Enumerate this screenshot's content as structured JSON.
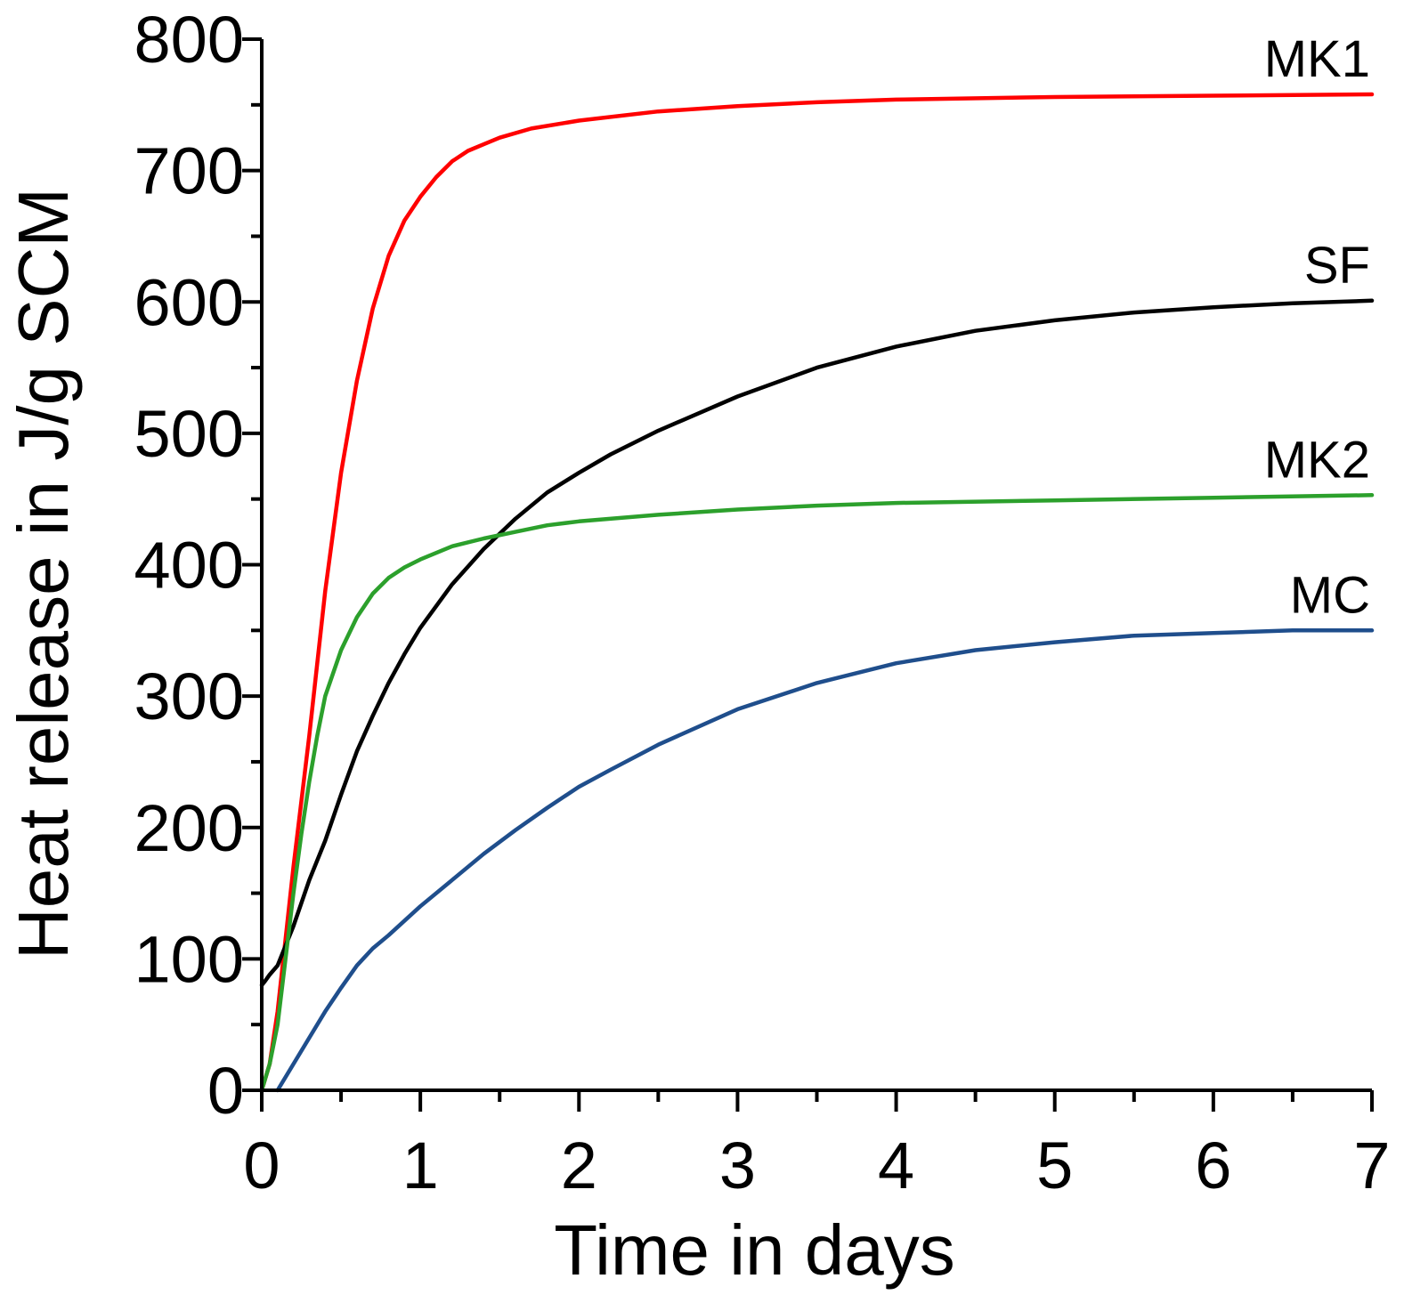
{
  "chart_data": {
    "type": "line",
    "title": "",
    "xlabel": "Time in days",
    "ylabel": "Heat release in J/g SCM",
    "xlim": [
      0,
      7
    ],
    "ylim": [
      0,
      800
    ],
    "xticks": [
      0,
      1,
      2,
      3,
      4,
      5,
      6,
      7
    ],
    "xtick_labels": [
      "0",
      "1",
      "2",
      "3",
      "4",
      "5",
      "6",
      "7"
    ],
    "xminor": [
      0.5,
      1.5,
      2.5,
      3.5,
      4.5,
      5.5,
      6.5
    ],
    "yticks": [
      0,
      100,
      200,
      300,
      400,
      500,
      600,
      700,
      800
    ],
    "ytick_labels": [
      "0",
      "100",
      "200",
      "300",
      "400",
      "500",
      "600",
      "700",
      "800"
    ],
    "yminor": [
      50,
      150,
      250,
      350,
      450,
      550,
      650,
      750
    ],
    "grid": false,
    "legend": "inline labels at right end of each line",
    "series": [
      {
        "name": "MK1",
        "color": "#ff0000",
        "x": [
          0,
          0.05,
          0.1,
          0.15,
          0.2,
          0.3,
          0.4,
          0.5,
          0.6,
          0.7,
          0.8,
          0.9,
          1.0,
          1.1,
          1.2,
          1.3,
          1.4,
          1.5,
          1.7,
          2.0,
          2.5,
          3.0,
          3.5,
          4.0,
          5.0,
          6.0,
          7.0
        ],
        "y": [
          0,
          20,
          60,
          115,
          170,
          270,
          380,
          470,
          540,
          595,
          635,
          662,
          680,
          695,
          707,
          715,
          720,
          725,
          732,
          738,
          745,
          749,
          752,
          754,
          756,
          757,
          758
        ]
      },
      {
        "name": "SF",
        "color": "#000000",
        "x": [
          0,
          0.02,
          0.05,
          0.1,
          0.2,
          0.3,
          0.4,
          0.5,
          0.6,
          0.7,
          0.8,
          0.9,
          1.0,
          1.2,
          1.4,
          1.6,
          1.8,
          2.0,
          2.2,
          2.5,
          3.0,
          3.5,
          4.0,
          4.5,
          5.0,
          5.5,
          6.0,
          6.5,
          7.0
        ],
        "y": [
          80,
          83,
          88,
          95,
          125,
          160,
          190,
          225,
          258,
          285,
          310,
          332,
          352,
          385,
          412,
          435,
          455,
          470,
          484,
          502,
          528,
          550,
          566,
          578,
          586,
          592,
          596,
          599,
          601
        ]
      },
      {
        "name": "MK2",
        "color": "#2ca02c",
        "x": [
          0,
          0.05,
          0.1,
          0.15,
          0.2,
          0.25,
          0.3,
          0.35,
          0.4,
          0.5,
          0.6,
          0.7,
          0.8,
          0.9,
          1.0,
          1.2,
          1.4,
          1.6,
          1.8,
          2.0,
          2.5,
          3.0,
          3.5,
          4.0,
          5.0,
          6.0,
          7.0
        ],
        "y": [
          0,
          20,
          50,
          100,
          150,
          195,
          235,
          270,
          300,
          335,
          360,
          378,
          390,
          398,
          404,
          414,
          420,
          425,
          430,
          433,
          438,
          442,
          445,
          447,
          449,
          451,
          453
        ]
      },
      {
        "name": "MC",
        "color": "#1f4e8c",
        "x": [
          0.1,
          0.2,
          0.3,
          0.4,
          0.5,
          0.6,
          0.7,
          0.8,
          1.0,
          1.2,
          1.4,
          1.6,
          1.8,
          2.0,
          2.2,
          2.5,
          3.0,
          3.5,
          4.0,
          4.5,
          5.0,
          5.5,
          6.0,
          6.5,
          7.0
        ],
        "y": [
          0,
          20,
          40,
          60,
          78,
          95,
          108,
          118,
          140,
          160,
          180,
          198,
          215,
          231,
          244,
          263,
          290,
          310,
          325,
          335,
          341,
          346,
          348,
          350,
          350
        ]
      }
    ]
  }
}
